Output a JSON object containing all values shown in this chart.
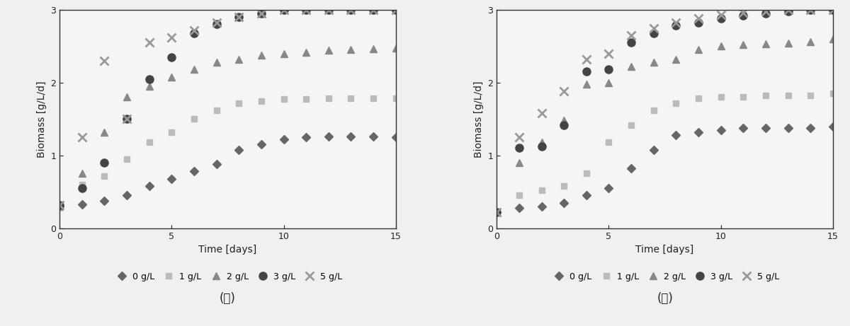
{
  "panel_a": {
    "title": "(ａ)",
    "xlabel": "Time [days]",
    "ylabel": "Biomass [g/L/d]",
    "xlim": [
      0,
      15
    ],
    "ylim": [
      0,
      3
    ],
    "yticks": [
      0,
      1,
      2,
      3
    ],
    "xticks": [
      0,
      5,
      10,
      15
    ],
    "series": [
      {
        "label": "0 g/L",
        "color": "#666666",
        "marker": "D",
        "markersize": 6,
        "x": [
          0,
          1,
          2,
          3,
          4,
          5,
          6,
          7,
          8,
          9,
          10,
          11,
          12,
          13,
          14,
          15
        ],
        "y": [
          0.3,
          0.33,
          0.38,
          0.45,
          0.58,
          0.68,
          0.78,
          0.88,
          1.08,
          1.15,
          1.22,
          1.25,
          1.26,
          1.26,
          1.26,
          1.25
        ]
      },
      {
        "label": "1 g/L",
        "color": "#bbbbbb",
        "marker": "s",
        "markersize": 6,
        "x": [
          0,
          1,
          2,
          3,
          4,
          5,
          6,
          7,
          8,
          9,
          10,
          11,
          12,
          13,
          14,
          15
        ],
        "y": [
          0.3,
          0.6,
          0.72,
          0.95,
          1.18,
          1.32,
          1.5,
          1.62,
          1.72,
          1.75,
          1.77,
          1.77,
          1.78,
          1.78,
          1.78,
          1.78
        ]
      },
      {
        "label": "2 g/L",
        "color": "#888888",
        "marker": "^",
        "markersize": 7,
        "x": [
          0,
          1,
          2,
          3,
          4,
          5,
          6,
          7,
          8,
          9,
          10,
          11,
          12,
          13,
          14,
          15
        ],
        "y": [
          0.3,
          0.75,
          1.32,
          1.8,
          1.95,
          2.08,
          2.18,
          2.28,
          2.32,
          2.38,
          2.4,
          2.42,
          2.44,
          2.45,
          2.46,
          2.47
        ]
      },
      {
        "label": "3 g/L",
        "color": "#444444",
        "marker": "o",
        "markersize": 8,
        "x": [
          0,
          1,
          2,
          3,
          4,
          5,
          6,
          7,
          8,
          9,
          10,
          11,
          12,
          13,
          14,
          15
        ],
        "y": [
          0.32,
          0.55,
          0.9,
          1.5,
          2.05,
          2.35,
          2.68,
          2.8,
          2.9,
          2.95,
          3.0,
          3.0,
          3.0,
          3.0,
          3.0,
          3.0
        ]
      },
      {
        "label": "5 g/L",
        "color": "#999999",
        "marker": "x",
        "markersize": 9,
        "markeredgewidth": 2,
        "x": [
          0,
          1,
          2,
          3,
          4,
          5,
          6,
          7,
          8,
          9,
          10,
          11,
          12,
          13,
          14,
          15
        ],
        "y": [
          0.32,
          1.25,
          2.3,
          1.5,
          2.55,
          2.62,
          2.72,
          2.82,
          2.9,
          2.95,
          3.0,
          3.0,
          3.0,
          3.0,
          3.0,
          3.0
        ]
      }
    ]
  },
  "panel_b": {
    "title": "(ｂ)",
    "xlabel": "Time [days]",
    "ylabel": "Biomass [g/L/d]",
    "xlim": [
      0,
      15
    ],
    "ylim": [
      0,
      3
    ],
    "yticks": [
      0,
      1,
      2,
      3
    ],
    "xticks": [
      0,
      5,
      10,
      15
    ],
    "series": [
      {
        "label": "0 g/L",
        "color": "#666666",
        "marker": "D",
        "markersize": 6,
        "x": [
          0,
          1,
          2,
          3,
          4,
          5,
          6,
          7,
          8,
          9,
          10,
          11,
          12,
          13,
          14,
          15
        ],
        "y": [
          0.22,
          0.28,
          0.3,
          0.35,
          0.45,
          0.55,
          0.82,
          1.08,
          1.28,
          1.32,
          1.35,
          1.38,
          1.38,
          1.38,
          1.38,
          1.4
        ]
      },
      {
        "label": "1 g/L",
        "color": "#bbbbbb",
        "marker": "s",
        "markersize": 6,
        "x": [
          0,
          1,
          2,
          3,
          4,
          5,
          6,
          7,
          8,
          9,
          10,
          11,
          12,
          13,
          14,
          15
        ],
        "y": [
          0.22,
          0.45,
          0.52,
          0.58,
          0.75,
          1.18,
          1.42,
          1.62,
          1.72,
          1.78,
          1.8,
          1.8,
          1.82,
          1.82,
          1.82,
          1.85
        ]
      },
      {
        "label": "2 g/L",
        "color": "#888888",
        "marker": "^",
        "markersize": 7,
        "x": [
          0,
          1,
          2,
          3,
          4,
          5,
          6,
          7,
          8,
          9,
          10,
          11,
          12,
          13,
          14,
          15
        ],
        "y": [
          0.22,
          0.9,
          1.18,
          1.48,
          1.98,
          2.0,
          2.22,
          2.28,
          2.32,
          2.45,
          2.5,
          2.52,
          2.53,
          2.54,
          2.56,
          2.6
        ]
      },
      {
        "label": "3 g/L",
        "color": "#444444",
        "marker": "o",
        "markersize": 8,
        "x": [
          0,
          1,
          2,
          3,
          4,
          5,
          6,
          7,
          8,
          9,
          10,
          11,
          12,
          13,
          14,
          15
        ],
        "y": [
          0.22,
          1.1,
          1.12,
          1.42,
          2.15,
          2.18,
          2.55,
          2.68,
          2.78,
          2.82,
          2.88,
          2.92,
          2.95,
          2.98,
          3.0,
          3.0
        ]
      },
      {
        "label": "5 g/L",
        "color": "#999999",
        "marker": "x",
        "markersize": 9,
        "markeredgewidth": 2,
        "x": [
          0,
          1,
          2,
          3,
          4,
          5,
          6,
          7,
          8,
          9,
          10,
          11,
          12,
          13,
          14,
          15
        ],
        "y": [
          0.22,
          1.25,
          1.58,
          1.88,
          2.32,
          2.4,
          2.65,
          2.75,
          2.82,
          2.88,
          2.93,
          2.96,
          2.98,
          3.0,
          3.0,
          3.0
        ]
      }
    ]
  },
  "figure_bg": "#f0f0f0",
  "axes_bg": "#f5f5f5",
  "font_color": "#222222",
  "tick_fontsize": 9,
  "label_fontsize": 10,
  "legend_fontsize": 9,
  "subtitle_fontsize": 12
}
